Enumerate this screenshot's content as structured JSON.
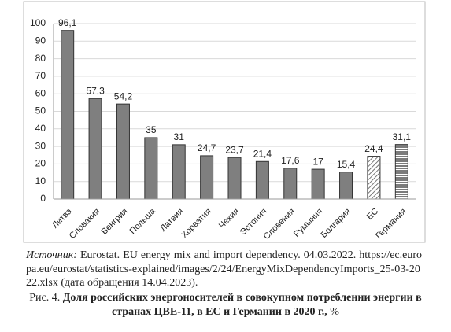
{
  "chart_data": {
    "type": "bar",
    "categories": [
      "Литва",
      "Словакия",
      "Венгрия",
      "Польша",
      "Латвия",
      "Хорватия",
      "Чехия",
      "Эстония",
      "Словения",
      "Румыния",
      "Болгария",
      "ЕС",
      "Германия"
    ],
    "values": [
      96.1,
      57.3,
      54.2,
      35,
      31,
      24.7,
      23.7,
      21.4,
      17.6,
      17,
      15.4,
      24.4,
      31.1
    ],
    "value_labels": [
      "96,1",
      "57,3",
      "54,2",
      "35",
      "31",
      "24,7",
      "23,7",
      "21,4",
      "17,6",
      "17",
      "15,4",
      "24,4",
      "31,1"
    ],
    "bar_styles": [
      "solid",
      "solid",
      "solid",
      "solid",
      "solid",
      "solid",
      "solid",
      "solid",
      "solid",
      "solid",
      "solid",
      "hatch",
      "stripes"
    ],
    "color": "#7f7f7f",
    "ylim": [
      0,
      100
    ],
    "yticks": [
      0,
      10,
      20,
      30,
      40,
      50,
      60,
      70,
      80,
      90,
      100
    ],
    "grid": true
  },
  "source": {
    "label": "Источник:",
    "text": "Eurostat. EU energy mix and import dependency. 04.03.2022. https://ec.europa.eu/eurostat/statistics-explained/images/2/24/EnergyMixDependencyImports_25-03-2022.xlsx (дата обращения 14.04.2023)."
  },
  "caption": {
    "number": "Рис. 4.",
    "title": "Доля российских энергоносителей в совокупном потреблении энергии в странах ЦВЕ-11, в ЕС и Германии в 2020 г.,",
    "unit": "%"
  }
}
